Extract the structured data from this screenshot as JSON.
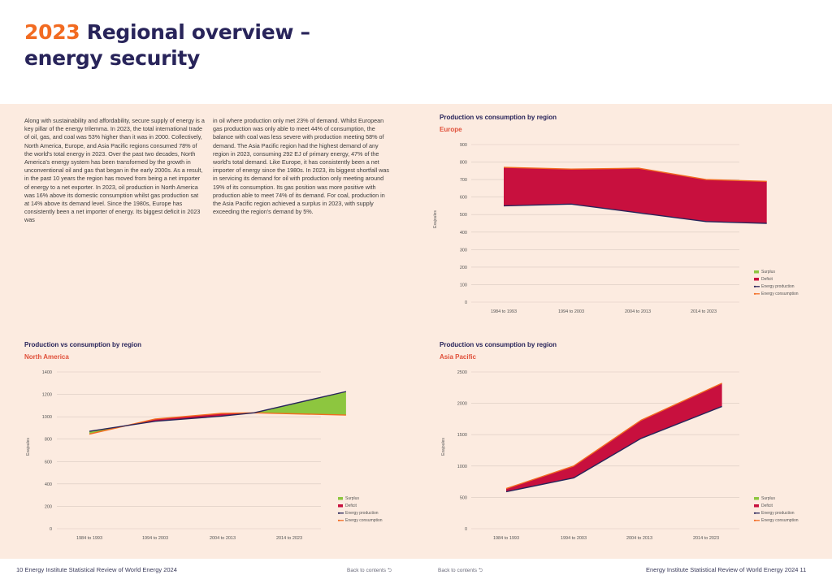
{
  "header": {
    "year": "2023",
    "title_rest": "Regional overview –",
    "title_line2": "energy security"
  },
  "body_text": {
    "col1": "Along with sustainability and affordability, secure supply of energy is a key pillar of the energy trilemma. In 2023, the total international trade of oil, gas, and coal was 53% higher than it was in 2000. Collectively, North America, Europe, and Asia Pacific regions consumed 78% of the world's total energy in 2023. Over the past two decades, North America's energy system has been transformed by the growth in unconventional oil and gas that began in the early 2000s. As a result, in the past 10 years the region has moved from being a net importer of energy to a net exporter. In 2023, oil production in North America was 16% above its domestic consumption whilst gas production sat at 14% above its demand level. Since the 1980s, Europe has consistently been a net importer of energy. Its biggest deficit in 2023 was",
    "col2": "in oil where production only met 23% of demand. Whilst European gas production was only able to meet 44% of consumption, the balance with coal was less severe with production meeting 58% of demand. The Asia Pacific region had the highest demand of any region in 2023, consuming 292 EJ of primary energy, 47% of the world's total demand. Like Europe, it has consistently been a net importer of energy since the 1980s. In 2023, its biggest shortfall was in servicing its demand for oil with production only meeting around 19% of its consumption. Its gas position was more positive with production able to meet 74% of its demand. For coal, production in the Asia Pacific region achieved a surplus in 2023, with supply exceeding the region's demand by 5%."
  },
  "colors": {
    "surplus": "#8dc63f",
    "deficit": "#c8103e",
    "production": "#28245a",
    "consumption": "#f26b21",
    "grid": "#d9c9bf",
    "tick": "#555555"
  },
  "chart_data": [
    {
      "type": "area",
      "title": "Production vs consumption by region",
      "subtitle": "Europe",
      "ylabel": "Exajoules",
      "ylim": [
        0,
        900
      ],
      "yticks": [
        0,
        100,
        200,
        300,
        400,
        500,
        600,
        700,
        800,
        900
      ],
      "categories": [
        "1984 to 1993",
        "1994 to 2003",
        "2004 to 2013",
        "2014 to 2023"
      ],
      "x": [
        0,
        1,
        2,
        3,
        3.9
      ],
      "series": [
        {
          "name": "Energy production",
          "values": [
            550,
            560,
            510,
            460,
            450
          ]
        },
        {
          "name": "Energy consumption",
          "values": [
            770,
            760,
            765,
            700,
            690
          ]
        }
      ],
      "legend": [
        "Surplus",
        "Deficit",
        "Energy production",
        "Energy consumption"
      ]
    },
    {
      "type": "area",
      "title": "Production vs consumption by region",
      "subtitle": "North America",
      "ylabel": "Exajoules",
      "ylim": [
        0,
        1400
      ],
      "yticks": [
        0,
        200,
        400,
        600,
        800,
        1000,
        1200,
        1400
      ],
      "categories": [
        "1984 to 1993",
        "1994 to 2003",
        "2004 to 2013",
        "2014 to 2023"
      ],
      "x": [
        0,
        1,
        2,
        2.5,
        3.9
      ],
      "series": [
        {
          "name": "Energy production",
          "values": [
            870,
            960,
            1005,
            1035,
            1225
          ]
        },
        {
          "name": "Energy consumption",
          "values": [
            845,
            980,
            1030,
            1035,
            1015
          ]
        }
      ],
      "legend": [
        "Surplus",
        "Deficit",
        "Energy production",
        "Energy consumption"
      ]
    },
    {
      "type": "area",
      "title": "Production vs consumption by region",
      "subtitle": "Asia Pacific",
      "ylabel": "Exajoules",
      "ylim": [
        0,
        2500
      ],
      "yticks": [
        0,
        500,
        1000,
        1500,
        2000,
        2500
      ],
      "categories": [
        "1984 to 1993",
        "1994 to 2003",
        "2004 to 2013",
        "2014 to 2023"
      ],
      "x": [
        0,
        1,
        2,
        3.2
      ],
      "series": [
        {
          "name": "Energy production",
          "values": [
            590,
            810,
            1440,
            1950
          ]
        },
        {
          "name": "Energy consumption",
          "values": [
            640,
            1000,
            1730,
            2320
          ]
        }
      ],
      "legend": [
        "Surplus",
        "Deficit",
        "Energy production",
        "Energy consumption"
      ]
    }
  ],
  "footer": {
    "left_page": "10",
    "left_title": "Energy Institute Statistical Review of World Energy 2024",
    "back_left": "Back to contents ⮌",
    "back_right": "Back to contents ⮌",
    "right_title": "Energy Institute Statistical Review of World Energy 2024",
    "right_page": "11"
  }
}
